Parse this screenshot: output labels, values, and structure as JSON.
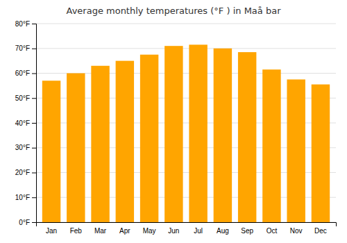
{
  "chart_data": {
    "type": "bar",
    "title": "Average monthly temperatures (°F ) in Maå bar",
    "categories": [
      "Jan",
      "Feb",
      "Mar",
      "Apr",
      "May",
      "Jun",
      "Jul",
      "Aug",
      "Sep",
      "Oct",
      "Nov",
      "Dec"
    ],
    "values": [
      57.0,
      60.0,
      63.0,
      65.0,
      67.5,
      71.0,
      71.5,
      70.0,
      68.5,
      61.5,
      57.5,
      55.5
    ],
    "color": "#FFA500",
    "ylim": [
      0,
      80
    ],
    "yticks": [
      {
        "value": 0,
        "label": "0°F"
      },
      {
        "value": 10,
        "label": "10°F"
      },
      {
        "value": 20,
        "label": "20°F"
      },
      {
        "value": 30,
        "label": "30°F"
      },
      {
        "value": 40,
        "label": "40°F"
      },
      {
        "value": 50,
        "label": "50°F"
      },
      {
        "value": 60,
        "label": "60°F"
      },
      {
        "value": 70,
        "label": "70°F"
      },
      {
        "value": 80,
        "label": "80°F"
      }
    ],
    "grid": true
  }
}
